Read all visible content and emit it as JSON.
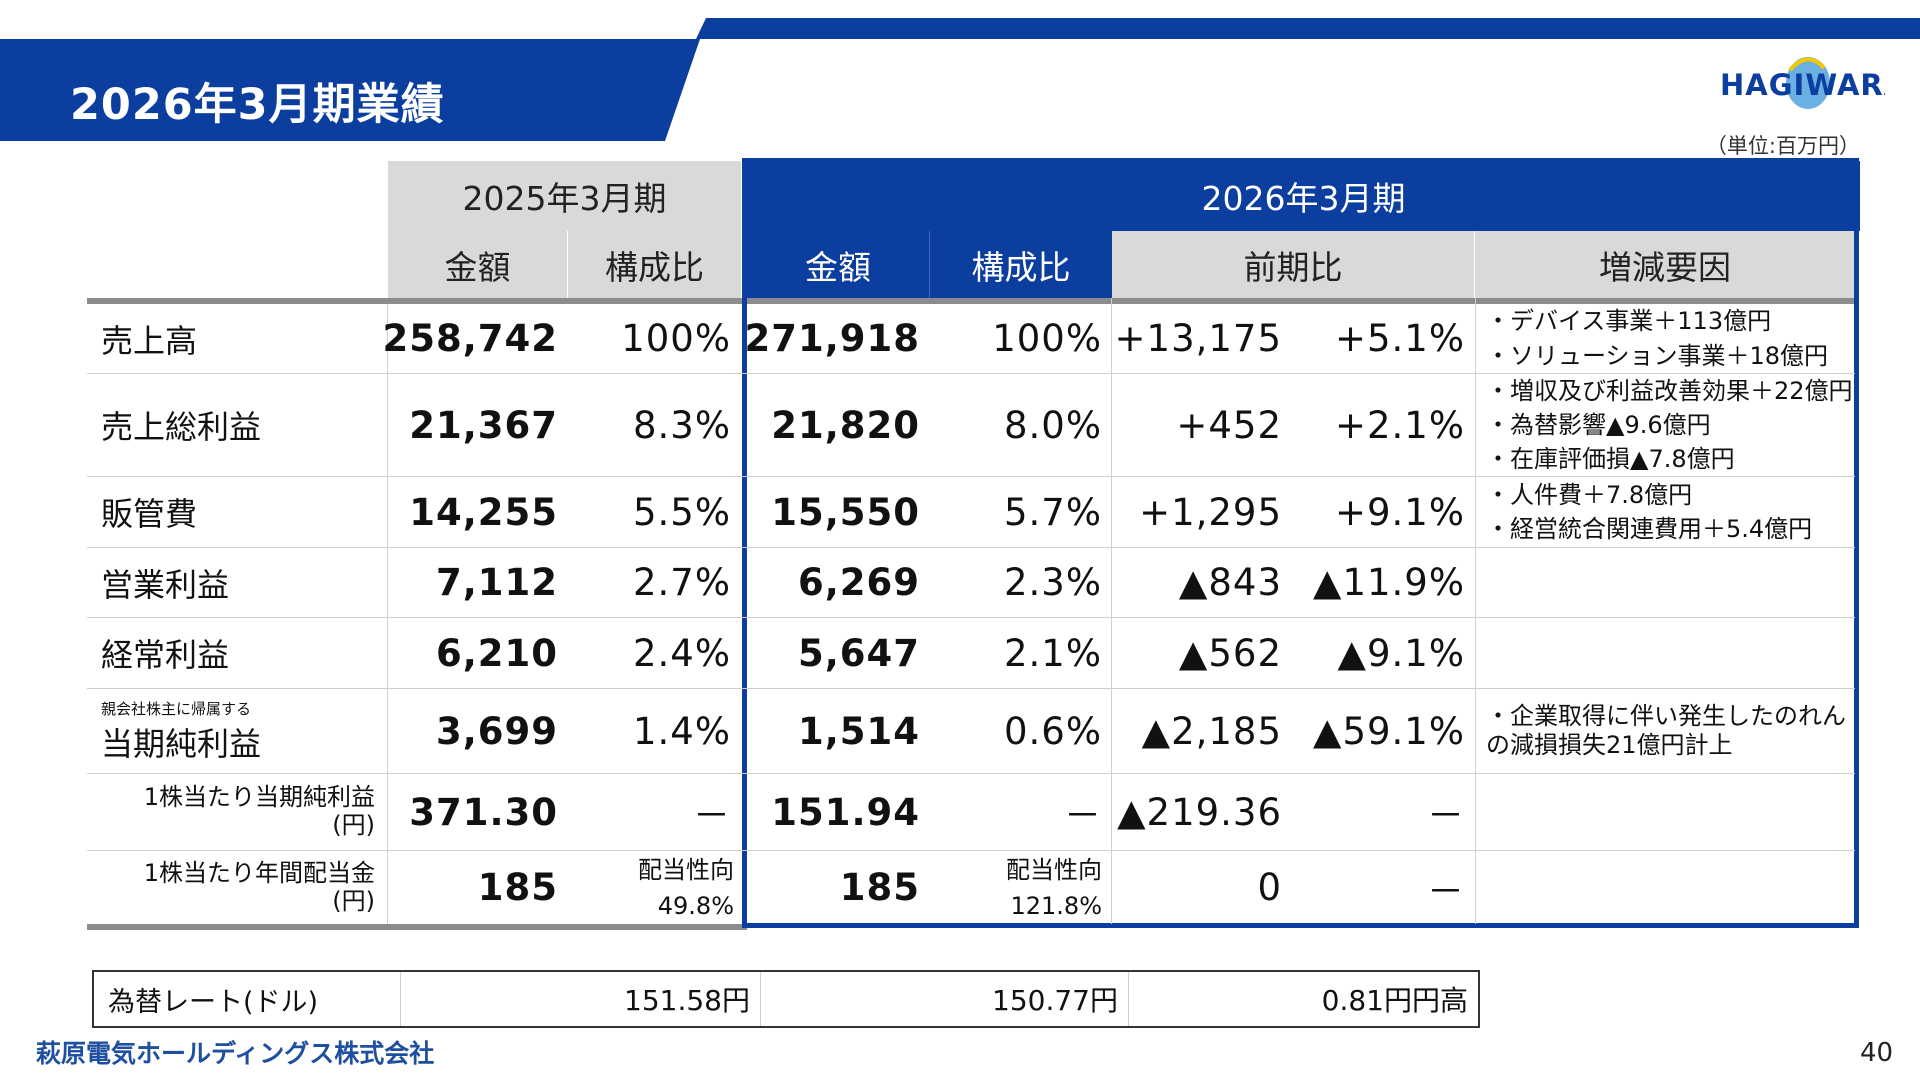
{
  "header": {
    "title": "2026年3月期業績",
    "logo_text": "HAGIWARA",
    "unit_note": "（単位:百万円）"
  },
  "colors": {
    "brand_blue": "#0b3e9e",
    "header_gray": "#d9d9d9"
  },
  "table": {
    "period_prev": "2025年3月期",
    "period_curr": "2026年3月期",
    "col_amount": "金額",
    "col_ratio": "構成比",
    "col_yoy": "前期比",
    "col_factors": "増減要因",
    "rows": [
      {
        "label_small": "",
        "label": "売上高",
        "prev_amount": "258,742",
        "prev_ratio": "100%",
        "curr_amount": "271,918",
        "curr_ratio": "100%",
        "yoy_amount": "+13,175",
        "yoy_pct": "+5.1%",
        "factors": [
          "・デバイス事業＋113億円",
          "・ソリューション事業＋18億円"
        ]
      },
      {
        "label_small": "",
        "label": "売上総利益",
        "prev_amount": "21,367",
        "prev_ratio": "8.3%",
        "curr_amount": "21,820",
        "curr_ratio": "8.0%",
        "yoy_amount": "+452",
        "yoy_pct": "+2.1%",
        "factors": [
          "・増収及び利益改善効果＋22億円",
          "・為替影響▲9.6億円",
          "・在庫評価損▲7.8億円"
        ]
      },
      {
        "label_small": "",
        "label": "販管費",
        "prev_amount": "14,255",
        "prev_ratio": "5.5%",
        "curr_amount": "15,550",
        "curr_ratio": "5.7%",
        "yoy_amount": "+1,295",
        "yoy_pct": "+9.1%",
        "factors": [
          "・人件費＋7.8億円",
          "・経営統合関連費用＋5.4億円"
        ]
      },
      {
        "label_small": "",
        "label": "営業利益",
        "prev_amount": "7,112",
        "prev_ratio": "2.7%",
        "curr_amount": "6,269",
        "curr_ratio": "2.3%",
        "yoy_amount": "▲843",
        "yoy_pct": "▲11.9%",
        "factors": []
      },
      {
        "label_small": "",
        "label": "経常利益",
        "prev_amount": "6,210",
        "prev_ratio": "2.4%",
        "curr_amount": "5,647",
        "curr_ratio": "2.1%",
        "yoy_amount": "▲562",
        "yoy_pct": "▲9.1%",
        "factors": []
      },
      {
        "label_small": "親会社株主に帰属する",
        "label": "当期純利益",
        "prev_amount": "3,699",
        "prev_ratio": "1.4%",
        "curr_amount": "1,514",
        "curr_ratio": "0.6%",
        "yoy_amount": "▲2,185",
        "yoy_pct": "▲59.1%",
        "factors": [
          "・企業取得に伴い発生したのれん",
          "の減損損失21億円計上"
        ]
      }
    ],
    "eps_row": {
      "label1": "1株当たり当期純利益",
      "label2": "(円)",
      "prev_amount": "371.30",
      "prev_ratio": "－",
      "curr_amount": "151.94",
      "curr_ratio": "－",
      "yoy_amount": "▲219.36",
      "yoy_pct": "－"
    },
    "div_row": {
      "label1": "1株当たり年間配当金",
      "label2": "(円)",
      "prev_amount": "185",
      "prev_ratio_label": "配当性向",
      "prev_ratio": "49.8%",
      "curr_amount": "185",
      "curr_ratio_label": "配当性向",
      "curr_ratio": "121.8%",
      "yoy_amount": "0",
      "yoy_pct": "－"
    }
  },
  "fx": {
    "label": "為替レート(ドル)",
    "prev": "151.58円",
    "curr": "150.77円",
    "diff": "0.81円円高"
  },
  "footer": {
    "company": "萩原電気ホールディングス株式会社",
    "page": "40"
  }
}
